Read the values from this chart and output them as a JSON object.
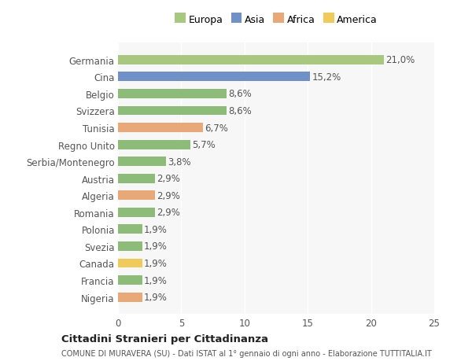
{
  "categories": [
    "Nigeria",
    "Francia",
    "Canada",
    "Svezia",
    "Polonia",
    "Romania",
    "Algeria",
    "Austria",
    "Serbia/Montenegro",
    "Regno Unito",
    "Tunisia",
    "Svizzera",
    "Belgio",
    "Cina",
    "Germania"
  ],
  "values": [
    1.9,
    1.9,
    1.9,
    1.9,
    1.9,
    2.9,
    2.9,
    2.9,
    3.8,
    5.7,
    6.7,
    8.6,
    8.6,
    15.2,
    21.0
  ],
  "labels": [
    "1,9%",
    "1,9%",
    "1,9%",
    "1,9%",
    "1,9%",
    "2,9%",
    "2,9%",
    "2,9%",
    "3,8%",
    "5,7%",
    "6,7%",
    "8,6%",
    "8,6%",
    "15,2%",
    "21,0%"
  ],
  "colors": [
    "#e8a878",
    "#8dbb78",
    "#f0cb5a",
    "#8dbb78",
    "#8dbb78",
    "#8dbb78",
    "#e8a878",
    "#8dbb78",
    "#8dbb78",
    "#8dbb78",
    "#e8a878",
    "#8dbb78",
    "#8dbb78",
    "#7090c8",
    "#a8c880"
  ],
  "legend_labels": [
    "Europa",
    "Asia",
    "Africa",
    "America"
  ],
  "legend_colors": [
    "#a8c880",
    "#7090c8",
    "#e8a878",
    "#f0cb5a"
  ],
  "title": "Cittadini Stranieri per Cittadinanza",
  "subtitle": "COMUNE DI MURAVERA (SU) - Dati ISTAT al 1° gennaio di ogni anno - Elaborazione TUTTITALIA.IT",
  "xlim": [
    0,
    25
  ],
  "xticks": [
    0,
    5,
    10,
    15,
    20,
    25
  ],
  "bg_color": "#ffffff",
  "plot_bg_color": "#f7f7f7",
  "grid_color": "#ffffff",
  "label_fontsize": 8.5,
  "tick_fontsize": 8.5,
  "bar_height": 0.55
}
